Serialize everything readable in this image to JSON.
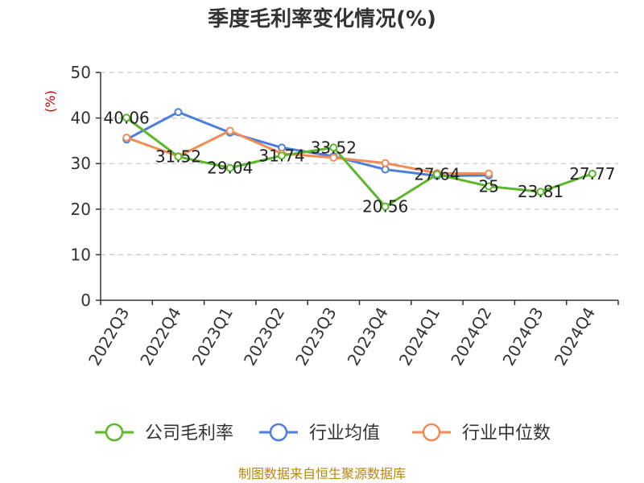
{
  "chart_data": {
    "type": "line",
    "title": "季度毛利率变化情况(%)",
    "ylabel": "(%)",
    "ylim": [
      0,
      50
    ],
    "yticks": [
      0,
      10,
      20,
      30,
      40,
      50
    ],
    "grid": "horizontal-dashed",
    "categories": [
      "2022Q3",
      "2022Q4",
      "2023Q1",
      "2023Q2",
      "2023Q3",
      "2023Q4",
      "2024Q1",
      "2024Q2",
      "2024Q3",
      "2024Q4"
    ],
    "series": [
      {
        "name": "公司毛利率",
        "color": "#5cb82a",
        "values": [
          40.06,
          31.52,
          29.04,
          31.74,
          33.52,
          20.56,
          27.64,
          25,
          23.81,
          27.77
        ],
        "labels": [
          "40.06",
          "31.52",
          "29.04",
          "31.74",
          "33.52",
          "20.56",
          "27.64",
          "25",
          "23.81",
          "27.77"
        ]
      },
      {
        "name": "行业均值",
        "color": "#4a7fdc",
        "values": [
          35.3,
          41.3,
          36.8,
          33.5,
          31.6,
          28.7,
          27.3,
          27.4,
          null,
          null
        ]
      },
      {
        "name": "行业中位数",
        "color": "#f28c55",
        "values": [
          35.7,
          31.6,
          37.2,
          32.2,
          31.3,
          30.1,
          27.9,
          27.8,
          null,
          null
        ]
      }
    ],
    "legend_position": "bottom-center"
  },
  "source": "制图数据来自恒生聚源数据库"
}
